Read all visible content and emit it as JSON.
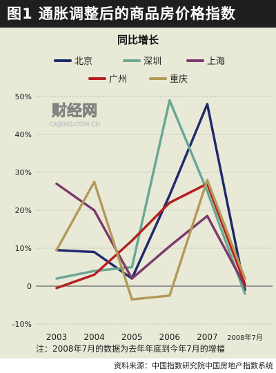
{
  "figure_title": "图1  通胀调整后的商品房价格指数",
  "footer_source": "资料来源：中国指数研究院中国房地产指数系统",
  "watermark": {
    "logo": "财经网",
    "url": "CAIJING.COM.CN"
  },
  "chart_data": {
    "type": "line",
    "title": "同比增长",
    "categories": [
      "2003",
      "2004",
      "2005",
      "2006",
      "2007",
      "2008年7月"
    ],
    "ylim": [
      -10,
      50
    ],
    "yticks": [
      -10,
      0,
      10,
      20,
      30,
      40,
      50
    ],
    "ytick_labels": [
      "-10%",
      "0",
      "10%",
      "20%",
      "30%",
      "40%",
      "50%"
    ],
    "grid": true,
    "legend_position": "top",
    "note": "注：2008年7月的数据为去年年底到今年7月的增幅",
    "series": [
      {
        "name": "北京",
        "color": "#1f2a6b",
        "values": [
          9.5,
          9,
          2,
          24,
          48,
          -1
        ]
      },
      {
        "name": "深圳",
        "color": "#6aa892",
        "values": [
          2,
          4,
          5,
          49,
          25,
          -2
        ]
      },
      {
        "name": "上海",
        "color": "#7d3a6c",
        "values": [
          27,
          20,
          2,
          10.5,
          18.5,
          0
        ]
      },
      {
        "name": "广州",
        "color": "#b32020",
        "values": [
          -0.5,
          3,
          12,
          22,
          27,
          0.5
        ]
      },
      {
        "name": "重庆",
        "color": "#b39a5a",
        "values": [
          9.5,
          27.5,
          -3.5,
          -2.5,
          28,
          2
        ]
      }
    ]
  }
}
